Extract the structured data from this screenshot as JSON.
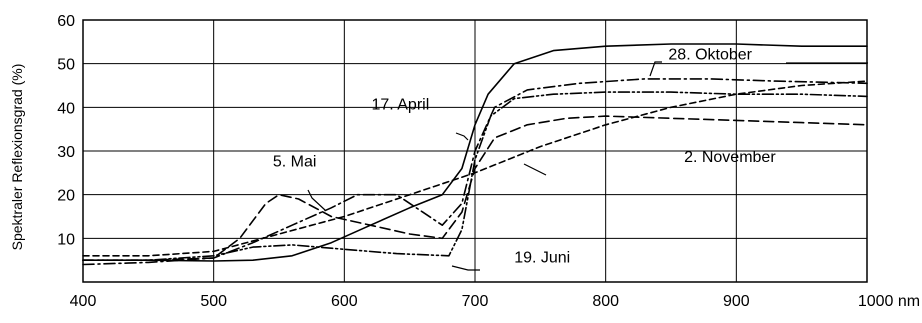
{
  "chart_data": {
    "type": "line",
    "title": "",
    "xlabel": "",
    "ylabel": "Spektraler Reflexionsgrad (%)",
    "x_unit": "nm",
    "xlim": [
      400,
      1000
    ],
    "ylim": [
      0,
      60
    ],
    "x_ticks": [
      400,
      500,
      600,
      700,
      800,
      900,
      1000
    ],
    "x_tick_labels": [
      "400",
      "500",
      "600",
      "700",
      "800",
      "900",
      "1000 nm"
    ],
    "y_ticks": [
      10,
      20,
      30,
      40,
      50,
      60
    ],
    "y_tick_labels": [
      "10",
      "20",
      "30",
      "40",
      "50",
      "60"
    ],
    "grid": true,
    "legend": "none (series labeled directly)",
    "series": [
      {
        "name": "17. April",
        "line_style": "solid",
        "points": [
          [
            400,
            5
          ],
          [
            450,
            5
          ],
          [
            500,
            4.8
          ],
          [
            530,
            5
          ],
          [
            560,
            6
          ],
          [
            590,
            9
          ],
          [
            620,
            13
          ],
          [
            650,
            17
          ],
          [
            675,
            20
          ],
          [
            690,
            26
          ],
          [
            700,
            36
          ],
          [
            710,
            43
          ],
          [
            730,
            50
          ],
          [
            760,
            53
          ],
          [
            800,
            54
          ],
          [
            850,
            54.5
          ],
          [
            900,
            54.5
          ],
          [
            950,
            54
          ],
          [
            1000,
            54
          ]
        ]
      },
      {
        "name": "5. Mai",
        "line_style": "long-dash",
        "points": [
          [
            400,
            5
          ],
          [
            450,
            5
          ],
          [
            500,
            5.5
          ],
          [
            520,
            10
          ],
          [
            540,
            18
          ],
          [
            550,
            20
          ],
          [
            565,
            19
          ],
          [
            590,
            15
          ],
          [
            620,
            13
          ],
          [
            650,
            11
          ],
          [
            675,
            10
          ],
          [
            690,
            16
          ],
          [
            700,
            26
          ],
          [
            715,
            33
          ],
          [
            740,
            36
          ],
          [
            770,
            37.5
          ],
          [
            800,
            38
          ],
          [
            850,
            37.5
          ],
          [
            900,
            37
          ],
          [
            950,
            36.5
          ],
          [
            1000,
            36
          ]
        ]
      },
      {
        "name": "19. Juni",
        "line_style": "dash-dot-dot",
        "points": [
          [
            400,
            5
          ],
          [
            450,
            5
          ],
          [
            500,
            6
          ],
          [
            530,
            8
          ],
          [
            560,
            8.5
          ],
          [
            600,
            7.5
          ],
          [
            640,
            6.5
          ],
          [
            680,
            6
          ],
          [
            690,
            12
          ],
          [
            700,
            28
          ],
          [
            712,
            38
          ],
          [
            730,
            42
          ],
          [
            760,
            43
          ],
          [
            800,
            43.5
          ],
          [
            850,
            43.5
          ],
          [
            900,
            43
          ],
          [
            950,
            43
          ],
          [
            1000,
            42.5
          ]
        ]
      },
      {
        "name": "28. Oktober",
        "line_style": "dash-dot",
        "points": [
          [
            400,
            4
          ],
          [
            450,
            4.5
          ],
          [
            500,
            5.5
          ],
          [
            530,
            9
          ],
          [
            560,
            13
          ],
          [
            590,
            17
          ],
          [
            610,
            20
          ],
          [
            640,
            20
          ],
          [
            660,
            16
          ],
          [
            675,
            13
          ],
          [
            690,
            18
          ],
          [
            700,
            30
          ],
          [
            715,
            40
          ],
          [
            740,
            44
          ],
          [
            780,
            45.5
          ],
          [
            830,
            46.5
          ],
          [
            880,
            46.5
          ],
          [
            930,
            46
          ],
          [
            1000,
            45.5
          ]
        ]
      },
      {
        "name": "2. November",
        "line_style": "short-dash",
        "points": [
          [
            400,
            6
          ],
          [
            450,
            6
          ],
          [
            500,
            7
          ],
          [
            550,
            11
          ],
          [
            600,
            15
          ],
          [
            650,
            20
          ],
          [
            700,
            25
          ],
          [
            750,
            31
          ],
          [
            800,
            36
          ],
          [
            850,
            40
          ],
          [
            900,
            43
          ],
          [
            950,
            45
          ],
          [
            1000,
            46
          ]
        ]
      }
    ],
    "annotations": [
      {
        "text": "28. Oktober",
        "x": 880,
        "y": 51
      },
      {
        "text": "17. April",
        "x": 665,
        "y": 39.5
      },
      {
        "text": "2. November",
        "x": 860,
        "y": 27.5
      },
      {
        "text": "5. Mai",
        "x": 562,
        "y": 26.5
      },
      {
        "text": "19. Juni",
        "x": 730,
        "y": 4.5
      }
    ]
  }
}
